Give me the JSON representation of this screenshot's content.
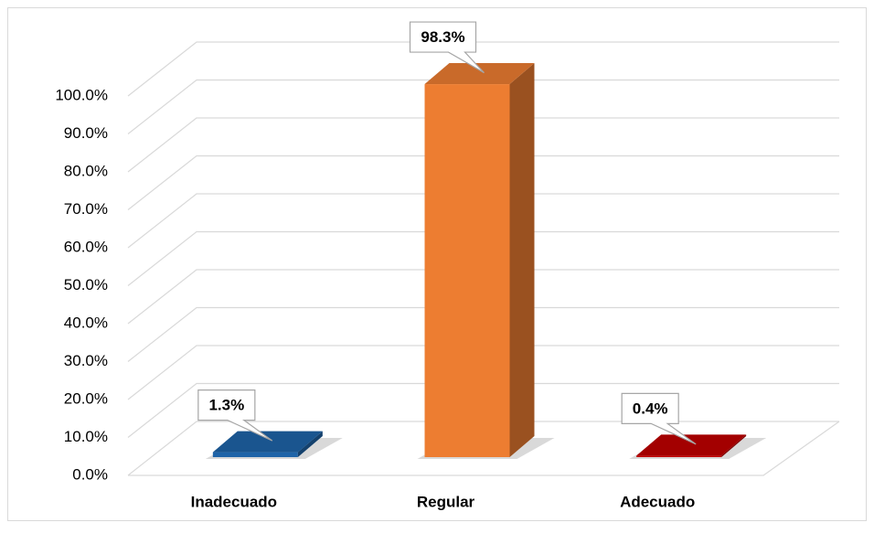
{
  "chart_data": {
    "type": "bar",
    "categories": [
      "Inadecuado",
      "Regular",
      "Adecuado"
    ],
    "values": [
      1.3,
      98.3,
      0.4
    ],
    "value_labels": [
      "1.3%",
      "98.3%",
      "0.4%"
    ],
    "colors": [
      "#1f64a8",
      "#ed7d31",
      "#c00000"
    ],
    "ylim": [
      0,
      100
    ],
    "yticks": [
      {
        "value": 0,
        "label": "0.0%"
      },
      {
        "value": 10,
        "label": "10.0%"
      },
      {
        "value": 20,
        "label": "20.0%"
      },
      {
        "value": 30,
        "label": "30.0%"
      },
      {
        "value": 40,
        "label": "40.0%"
      },
      {
        "value": 50,
        "label": "50.0%"
      },
      {
        "value": 60,
        "label": "60.0%"
      },
      {
        "value": 70,
        "label": "70.0%"
      },
      {
        "value": 80,
        "label": "80.0%"
      },
      {
        "value": 90,
        "label": "90.0%"
      },
      {
        "value": 100,
        "label": "100.0%"
      }
    ],
    "grid": true
  }
}
